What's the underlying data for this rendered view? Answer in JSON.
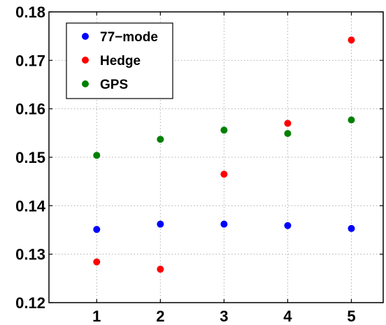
{
  "chart_data": {
    "type": "scatter",
    "title": "",
    "xlabel": "",
    "ylabel": "",
    "x": [
      1,
      2,
      3,
      4,
      5
    ],
    "xlim": [
      0.25,
      5.5
    ],
    "ylim": [
      0.12,
      0.18
    ],
    "x_ticks": [
      "1",
      "2",
      "3",
      "4",
      "5"
    ],
    "y_ticks": [
      "0.12",
      "0.13",
      "0.14",
      "0.15",
      "0.16",
      "0.17",
      "0.18"
    ],
    "grid": true,
    "legend_position": "top-left",
    "series": [
      {
        "name": "77−mode",
        "color": "#0000ff",
        "values": [
          0.1351,
          0.1362,
          0.1362,
          0.1359,
          0.1353
        ]
      },
      {
        "name": "Hedge",
        "color": "#ff0000",
        "values": [
          0.1284,
          0.1269,
          0.1465,
          0.157,
          0.1742
        ]
      },
      {
        "name": "GPS",
        "color": "#008000",
        "values": [
          0.1504,
          0.1537,
          0.1556,
          0.1549,
          0.1577
        ]
      }
    ]
  }
}
